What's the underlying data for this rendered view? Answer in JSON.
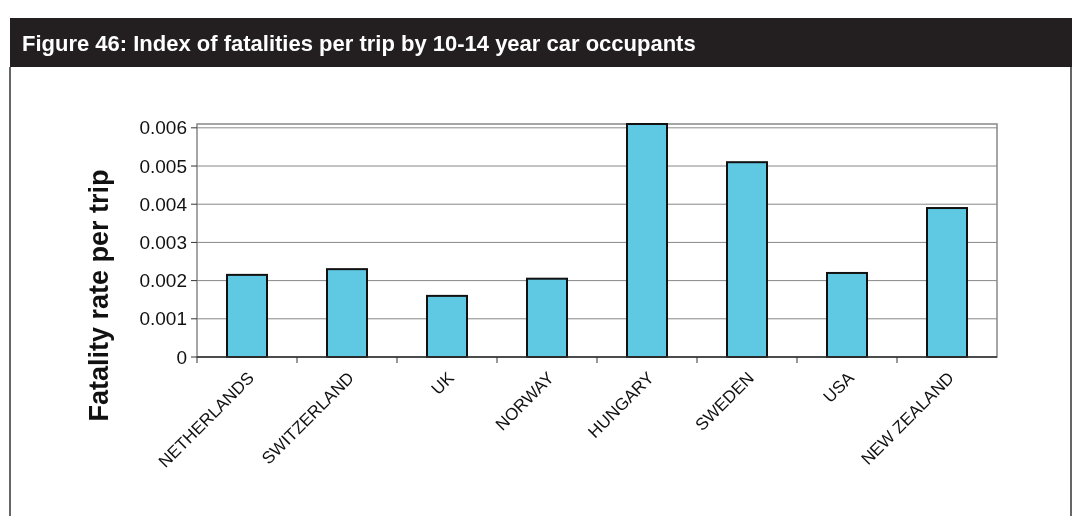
{
  "chart_data": {
    "type": "bar",
    "title": "Figure 46:  Index of fatalities per trip by 10-14 year car occupants",
    "ylabel": "Fatality rate per trip",
    "categories": [
      "NETHERLANDS",
      "SWITZERLAND",
      "UK",
      "NORWAY",
      "HUNGARY",
      "SWEDEN",
      "USA",
      "NEW ZEALAND"
    ],
    "values": [
      0.00215,
      0.0023,
      0.0016,
      0.00205,
      0.0061,
      0.0051,
      0.0022,
      0.0039
    ],
    "color": "#5fc8e3",
    "ylim": [
      0,
      0.0061
    ],
    "yticks": [
      0,
      0.001,
      0.002,
      0.003,
      0.004,
      0.005,
      0.006
    ],
    "grid": "y"
  }
}
